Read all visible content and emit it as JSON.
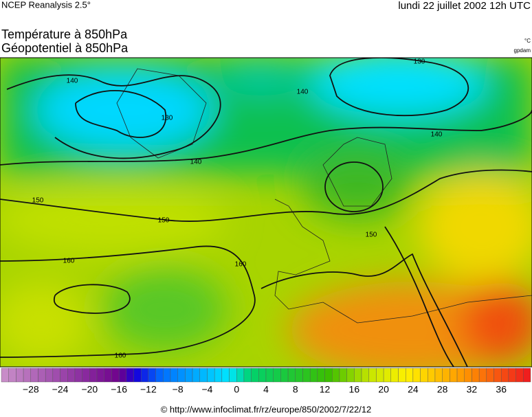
{
  "header": {
    "source": "NCEP Reanalysis 2.5°",
    "date": "lundi 22 juillet 2002 12h UTC",
    "title_line1": "Température à 850hPa",
    "title_line2": "Géopotentiel à 850hPa",
    "unit_temperature": "°C",
    "unit_geopotential": "gpdam"
  },
  "map": {
    "contour_labels": [
      "140",
      "130",
      "140",
      "140",
      "150",
      "150",
      "160",
      "160",
      "150",
      "160",
      "140",
      "130"
    ]
  },
  "colorbar": {
    "labels": [
      "−28",
      "−24",
      "−20",
      "−16",
      "−12",
      "−8",
      "−4",
      "0",
      "4",
      "8",
      "12",
      "16",
      "20",
      "24",
      "28",
      "32",
      "36"
    ]
  },
  "footer": {
    "credit": "© http://www.infoclimat.fr/rz/europe/850/2002/7/22/12"
  }
}
